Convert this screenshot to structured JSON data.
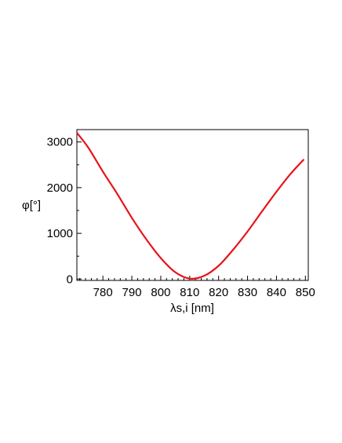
{
  "chart_data": {
    "type": "line",
    "title": "",
    "xlabel": "λs,i [nm]",
    "ylabel": "φ[°]",
    "xlim": [
      771,
      851
    ],
    "ylim": [
      -30,
      3270
    ],
    "x_ticks": [
      780,
      790,
      800,
      810,
      820,
      830,
      840,
      850
    ],
    "y_ticks": [
      0,
      1000,
      2000,
      3000
    ],
    "x_tick_labels": [
      "780",
      "790",
      "800",
      "810",
      "820",
      "830",
      "840",
      "850"
    ],
    "y_tick_labels": [
      "0",
      "1000",
      "2000",
      "3000"
    ],
    "grid": false,
    "legend": "none",
    "line_color": "#e8121a",
    "series": [
      {
        "x": [
          771,
          775,
          780,
          785,
          790,
          795,
          800,
          805,
          810,
          815,
          820,
          825,
          830,
          835,
          840,
          845,
          849.5
        ],
        "y": [
          3200,
          2870,
          2350,
          1860,
          1340,
          870,
          460,
          150,
          10,
          70,
          290,
          640,
          1040,
          1480,
          1910,
          2310,
          2620
        ]
      }
    ]
  }
}
